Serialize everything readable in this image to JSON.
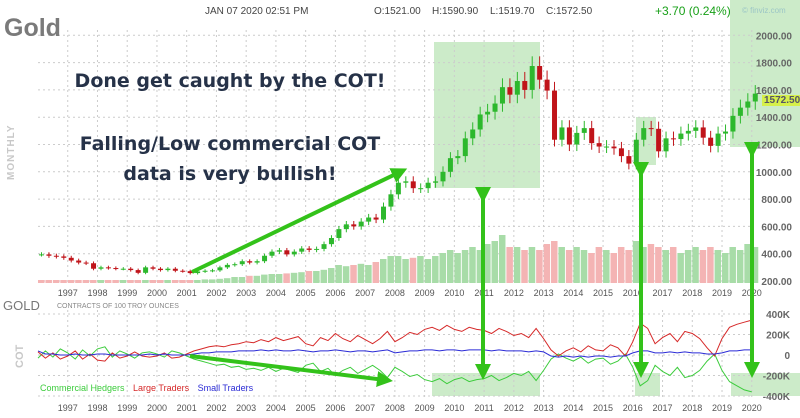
{
  "header": {
    "symbol": "Gold",
    "datetime": "JAN 07 2020 02:51 PM",
    "open": "O:1521.00",
    "high": "H:1590.90",
    "low": "L:1519.70",
    "close": "C:1572.50",
    "change": "+3.70 (0.24%)",
    "watermark": "© finviz.com",
    "period_label": "MONTHLY",
    "last_price_tag": "1572.50"
  },
  "annotations": {
    "line1": "Done get caught by the COT!",
    "line2": "Falling/Low commercial COT",
    "line3": "data is very bullish!"
  },
  "colors": {
    "up": "#2db82d",
    "down": "#c0141a",
    "highlight": "#bfe6bb",
    "arrow": "#33c21a",
    "commercial": "#3ccc3c",
    "large": "#d62828",
    "small": "#2b2bd6",
    "text": "#263248"
  },
  "chart_data": [
    {
      "type": "candlestick",
      "title": "Gold",
      "ylim": [
        150,
        2050
      ],
      "y_ticks": [
        "2000.00",
        "1800.00",
        "1600.00",
        "1400.00",
        "1200.00",
        "1000.00",
        "800.00",
        "600.00",
        "400.00",
        "200.00"
      ],
      "x_ticks": [
        "1997",
        "1998",
        "1999",
        "2000",
        "2001",
        "2002",
        "2003",
        "2004",
        "2005",
        "2006",
        "2007",
        "2008",
        "2009",
        "2010",
        "2011",
        "2012",
        "2013",
        "2014",
        "2015",
        "2016",
        "2017",
        "2018",
        "2019",
        "2020"
      ],
      "x_start": 1996,
      "quarterly_close": [
        395,
        385,
        380,
        370,
        350,
        335,
        330,
        290,
        300,
        295,
        290,
        290,
        280,
        260,
        300,
        290,
        280,
        290,
        275,
        272,
        258,
        270,
        275,
        278,
        300,
        318,
        323,
        345,
        335,
        345,
        385,
        415,
        425,
        395,
        415,
        438,
        428,
        435,
        470,
        515,
        580,
        615,
        600,
        635,
        665,
        650,
        745,
        835,
        920,
        930,
        880,
        880,
        920,
        930,
        1000,
        1100,
        1115,
        1245,
        1310,
        1420,
        1440,
        1500,
        1620,
        1565,
        1665,
        1600,
        1775,
        1675,
        1595,
        1235,
        1325,
        1200,
        1285,
        1320,
        1210,
        1185,
        1185,
        1172,
        1115,
        1060,
        1235,
        1320,
        1315,
        1150,
        1245,
        1240,
        1280,
        1300,
        1325,
        1250,
        1190,
        1280,
        1295,
        1410,
        1470,
        1515,
        1572.5
      ],
      "volume_relative": [
        0.05,
        0.05,
        0.05,
        0.05,
        0.05,
        0.05,
        0.05,
        0.05,
        0.05,
        0.05,
        0.05,
        0.05,
        0.05,
        0.05,
        0.05,
        0.05,
        0.05,
        0.05,
        0.05,
        0.05,
        0.05,
        0.05,
        0.06,
        0.06,
        0.07,
        0.08,
        0.1,
        0.1,
        0.12,
        0.12,
        0.14,
        0.15,
        0.15,
        0.16,
        0.17,
        0.18,
        0.2,
        0.2,
        0.22,
        0.25,
        0.3,
        0.28,
        0.3,
        0.32,
        0.3,
        0.35,
        0.4,
        0.45,
        0.45,
        0.4,
        0.42,
        0.45,
        0.4,
        0.45,
        0.5,
        0.55,
        0.5,
        0.55,
        0.6,
        0.55,
        0.65,
        0.7,
        0.8,
        0.6,
        0.6,
        0.55,
        0.6,
        0.55,
        0.65,
        0.7,
        0.6,
        0.55,
        0.6,
        0.55,
        0.5,
        0.6,
        0.55,
        0.5,
        0.6,
        0.55,
        0.7,
        0.6,
        0.65,
        0.6,
        0.55,
        0.6,
        0.5,
        0.55,
        0.6,
        0.55,
        0.6,
        0.55,
        0.5,
        0.6,
        0.55,
        0.65,
        0.6
      ]
    },
    {
      "type": "line",
      "title": "GOLD",
      "subtitle": "CONTRACTS OF 100 TROY OUNCES",
      "ylabel": "COT",
      "ylim": [
        -400,
        400
      ],
      "y_ticks": [
        "400K",
        "200K",
        "0",
        "-200K",
        "-400K"
      ],
      "x_ticks": [
        "1997",
        "1998",
        "1999",
        "2000",
        "2001",
        "2002",
        "2003",
        "2004",
        "2005",
        "2006",
        "2007",
        "2008",
        "2009",
        "2010",
        "2011",
        "2012",
        "2013",
        "2014",
        "2015",
        "2016",
        "2017",
        "2018",
        "2019",
        "2020"
      ],
      "x_start": 1996,
      "series": [
        {
          "name": "Commercial Hedgers",
          "values": [
            -30,
            40,
            -20,
            60,
            20,
            -40,
            50,
            -10,
            60,
            80,
            -20,
            40,
            10,
            -30,
            20,
            30,
            10,
            -20,
            40,
            20,
            -10,
            -40,
            -60,
            -80,
            -100,
            -90,
            -120,
            -110,
            -140,
            -130,
            -150,
            -120,
            -160,
            -130,
            -150,
            -170,
            -100,
            -80,
            -160,
            -130,
            -200,
            -150,
            -120,
            -180,
            -140,
            -100,
            -150,
            -220,
            -120,
            -160,
            -210,
            -190,
            -240,
            -260,
            -230,
            -280,
            -240,
            -220,
            -260,
            -240,
            -230,
            -200,
            -250,
            -220,
            -180,
            -200,
            -160,
            -250,
            -150,
            -40,
            10,
            -30,
            -60,
            -20,
            -80,
            -40,
            -30,
            -90,
            -60,
            10,
            -120,
            -300,
            -250,
            -100,
            -160,
            -200,
            -120,
            -220,
            -200,
            -150,
            -60,
            10,
            -150,
            -260,
            -300,
            -340,
            -360
          ]
        },
        {
          "name": "Large Traders",
          "values": [
            30,
            -30,
            20,
            -40,
            -10,
            40,
            -40,
            10,
            -50,
            -60,
            20,
            -30,
            -10,
            30,
            -10,
            -20,
            -10,
            20,
            -30,
            -20,
            10,
            40,
            60,
            80,
            90,
            80,
            100,
            110,
            130,
            120,
            150,
            130,
            170,
            140,
            160,
            180,
            110,
            90,
            170,
            140,
            210,
            160,
            130,
            190,
            150,
            110,
            160,
            230,
            130,
            170,
            220,
            200,
            250,
            270,
            240,
            290,
            250,
            230,
            270,
            250,
            240,
            210,
            260,
            230,
            190,
            210,
            170,
            260,
            160,
            50,
            -10,
            40,
            70,
            30,
            90,
            50,
            40,
            100,
            70,
            -10,
            130,
            310,
            260,
            110,
            170,
            210,
            130,
            230,
            210,
            160,
            70,
            -10,
            160,
            270,
            300,
            320,
            340
          ]
        },
        {
          "name": "Small Traders",
          "values": [
            40,
            10,
            10,
            0,
            0,
            10,
            0,
            0,
            10,
            10,
            0,
            0,
            0,
            0,
            0,
            10,
            0,
            10,
            0,
            0,
            0,
            10,
            20,
            20,
            30,
            30,
            30,
            40,
            40,
            40,
            50,
            40,
            50,
            40,
            40,
            50,
            40,
            30,
            40,
            40,
            50,
            40,
            30,
            40,
            40,
            30,
            40,
            50,
            20,
            30,
            40,
            40,
            50,
            50,
            40,
            50,
            50,
            40,
            50,
            50,
            50,
            40,
            50,
            40,
            40,
            40,
            30,
            40,
            30,
            -10,
            -20,
            -10,
            -20,
            -10,
            -20,
            -10,
            -10,
            -20,
            -10,
            -10,
            20,
            40,
            40,
            20,
            20,
            30,
            20,
            30,
            20,
            20,
            10,
            10,
            20,
            40,
            40,
            50,
            50
          ]
        }
      ],
      "legend_placement": "bottom-left"
    }
  ]
}
